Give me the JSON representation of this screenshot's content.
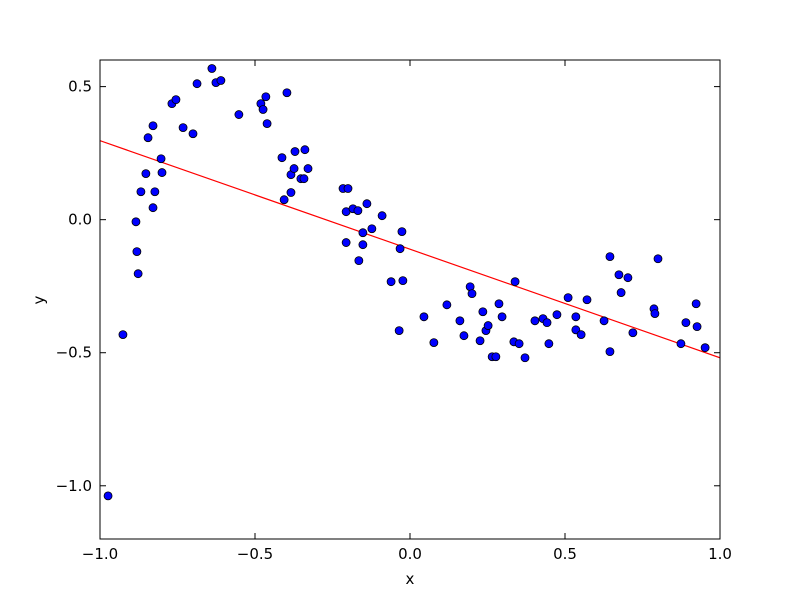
{
  "chart_data": {
    "type": "scatter",
    "x_label": "x",
    "y_label": "y",
    "color": "#0000ff",
    "edge_color": "#000000",
    "x": [
      -0.974,
      -0.926,
      -0.884,
      -0.881,
      -0.877,
      -0.868,
      -0.852,
      -0.845,
      -0.829,
      -0.829,
      -0.823,
      -0.803,
      -0.8,
      -0.768,
      -0.755,
      -0.732,
      -0.7,
      -0.687,
      -0.639,
      -0.626,
      -0.61,
      -0.552,
      -0.481,
      -0.474,
      -0.465,
      -0.461,
      -0.397,
      -0.413,
      -0.406,
      -0.384,
      -0.384,
      -0.374,
      -0.371,
      -0.352,
      -0.342,
      -0.339,
      -0.329,
      -0.216,
      -0.2,
      -0.206,
      -0.206,
      -0.184,
      -0.168,
      -0.165,
      -0.152,
      -0.152,
      -0.139,
      -0.123,
      -0.09,
      -0.061,
      -0.035,
      -0.032,
      -0.026,
      -0.023,
      0.045,
      0.077,
      0.119,
      0.161,
      0.174,
      0.194,
      0.2,
      0.226,
      0.235,
      0.245,
      0.252,
      0.265,
      0.277,
      0.287,
      0.297,
      0.335,
      0.339,
      0.352,
      0.371,
      0.403,
      0.429,
      0.442,
      0.448,
      0.474,
      0.51,
      0.535,
      0.535,
      0.552,
      0.571,
      0.626,
      0.645,
      0.645,
      0.674,
      0.681,
      0.703,
      0.719,
      0.787,
      0.79,
      0.8,
      0.874,
      0.89,
      0.923,
      0.926,
      0.952
    ],
    "values": [
      -1.038,
      -0.432,
      -0.008,
      -0.12,
      -0.203,
      0.105,
      0.173,
      0.308,
      0.353,
      0.045,
      0.105,
      0.229,
      0.177,
      0.436,
      0.451,
      0.346,
      0.323,
      0.511,
      0.568,
      0.515,
      0.523,
      0.395,
      0.436,
      0.414,
      0.462,
      0.361,
      0.477,
      0.233,
      0.075,
      0.169,
      0.102,
      0.192,
      0.256,
      0.154,
      0.154,
      0.263,
      0.192,
      0.117,
      0.117,
      0.03,
      -0.086,
      0.041,
      0.034,
      -0.154,
      -0.049,
      -0.094,
      0.06,
      -0.034,
      0.015,
      -0.233,
      -0.417,
      -0.109,
      -0.045,
      -0.229,
      -0.365,
      -0.462,
      -0.32,
      -0.38,
      -0.436,
      -0.252,
      -0.278,
      -0.455,
      -0.346,
      -0.417,
      -0.398,
      -0.515,
      -0.515,
      -0.316,
      -0.365,
      -0.459,
      -0.233,
      -0.466,
      -0.519,
      -0.38,
      -0.372,
      -0.387,
      -0.466,
      -0.357,
      -0.293,
      -0.365,
      -0.414,
      -0.432,
      -0.301,
      -0.38,
      -0.139,
      -0.496,
      -0.207,
      -0.274,
      -0.218,
      -0.425,
      -0.335,
      -0.353,
      -0.147,
      -0.466,
      -0.387,
      -0.316,
      -0.402,
      -0.481
    ],
    "line": {
      "x": [
        -1,
        1
      ],
      "values": [
        0.297,
        -0.519
      ],
      "color": "#ff0000"
    },
    "xlim": [
      -1,
      1
    ],
    "ylim": [
      -1.2,
      0.6
    ],
    "xticks": [
      {
        "value": -1,
        "label": "−1.0"
      },
      {
        "value": -0.5,
        "label": "−0.5"
      },
      {
        "value": 0,
        "label": "0.0"
      },
      {
        "value": 0.5,
        "label": "0.5"
      },
      {
        "value": 1,
        "label": "1.0"
      }
    ],
    "yticks": [
      {
        "value": -1,
        "label": "−1.0"
      },
      {
        "value": -0.5,
        "label": "−0.5"
      },
      {
        "value": 0,
        "label": "0.0"
      },
      {
        "value": 0.5,
        "label": "0.5"
      }
    ],
    "grid": false
  }
}
